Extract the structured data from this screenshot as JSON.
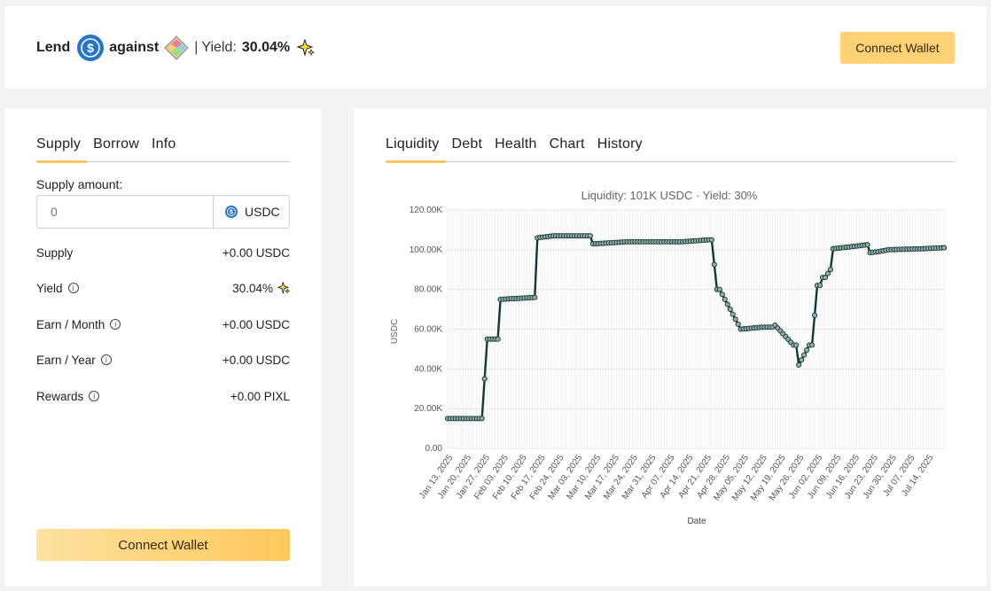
{
  "header": {
    "lend": "Lend",
    "against": "against",
    "separator": "|",
    "yield_label": "Yield:",
    "yield_value": "30.04%",
    "connect_label": "Connect Wallet"
  },
  "left": {
    "tabs": [
      "Supply",
      "Borrow",
      "Info"
    ],
    "supply_amount_label": "Supply amount:",
    "supply_placeholder": "0",
    "supply_unit": "USDC",
    "rows": [
      {
        "label": "Supply",
        "value": "+0.00 USDC"
      },
      {
        "label": "Yield",
        "value": "30.04%"
      },
      {
        "label": "Earn / Month",
        "value": "+0.00 USDC"
      },
      {
        "label": "Earn / Year",
        "value": "+0.00 USDC"
      },
      {
        "label": "Rewards",
        "value": "+0.00 PIXL"
      }
    ],
    "connect_label": "Connect Wallet"
  },
  "right": {
    "tabs": [
      "Liquidity",
      "Debt",
      "Health",
      "Chart",
      "History"
    ]
  },
  "chart_data": {
    "type": "line",
    "title": "Liquidity: 101K USDC · Yield: 30%",
    "xlabel": "Date",
    "ylabel": "USDC",
    "ylim": [
      0,
      120000
    ],
    "yticks": [
      "0.00",
      "20.00K",
      "40.00K",
      "60.00K",
      "80.00K",
      "100.00K",
      "120.00K"
    ],
    "xticks": [
      "Jan 13, 2025",
      "Jan 20, 2025",
      "Jan 27, 2025",
      "Feb 03, 2025",
      "Feb 10, 2025",
      "Feb 17, 2025",
      "Feb 24, 2025",
      "Mar 03, 2025",
      "Mar 10, 2025",
      "Mar 17, 2025",
      "Mar 24, 2025",
      "Mar 31, 2025",
      "Apr 07, 2025",
      "Apr 14, 2025",
      "Apr 21, 2025",
      "Apr 28, 2025",
      "May 05, 2025",
      "May 12, 2025",
      "May 19, 2025",
      "May 26, 2025",
      "Jun 02, 2025",
      "Jun 09, 2025",
      "Jun 16, 2025",
      "Jun 23, 2025",
      "Jun 30, 2025",
      "Jul 07, 2025",
      "Jul 14, 2025"
    ],
    "grid": true,
    "line_color": "#0d3b35",
    "series": [
      {
        "x": [
          "2025-01-11",
          "2025-01-24",
          "2025-01-25",
          "2025-01-26",
          "2025-01-30",
          "2025-01-31",
          "2025-02-13",
          "2025-02-14",
          "2025-02-20",
          "2025-02-21",
          "2025-02-22",
          "2025-02-23",
          "2025-03-06",
          "2025-03-07",
          "2025-03-08",
          "2025-03-20",
          "2025-04-10",
          "2025-04-20",
          "2025-04-21",
          "2025-04-23",
          "2025-04-24",
          "2025-05-02",
          "2025-05-10",
          "2025-05-14",
          "2025-05-15",
          "2025-05-22",
          "2025-05-23",
          "2025-05-24",
          "2025-05-28",
          "2025-05-29",
          "2025-05-31",
          "2025-06-01",
          "2025-06-02",
          "2025-06-03",
          "2025-06-05",
          "2025-06-06",
          "2025-06-16",
          "2025-06-19",
          "2025-06-20",
          "2025-06-23",
          "2025-06-27",
          "2025-07-10",
          "2025-07-18"
        ],
        "y": [
          15000,
          15000,
          35000,
          55000,
          55000,
          75000,
          76000,
          106000,
          107000,
          107000,
          107000,
          107000,
          107000,
          103000,
          103000,
          104000,
          104000,
          105000,
          105000,
          80000,
          80000,
          60000,
          61000,
          61000,
          62000,
          52000,
          52000,
          42000,
          52000,
          52000,
          82000,
          82000,
          86000,
          86000,
          90000,
          100500,
          102000,
          102500,
          98500,
          99000,
          100000,
          100500,
          101000
        ]
      }
    ]
  }
}
